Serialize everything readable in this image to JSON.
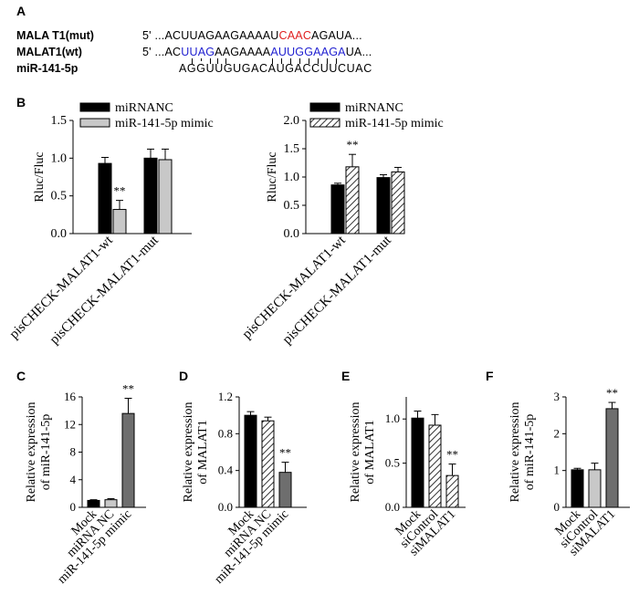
{
  "panels": {
    "A": "A",
    "B": "B",
    "C": "C",
    "D": "D",
    "E": "E",
    "F": "F"
  },
  "sequences": {
    "mut": {
      "label": "MALA T1(mut)",
      "prime": "5'",
      "pre": "...ACUUAGAAGAAAAU",
      "mut_site": "CAAC",
      "post": "AGAUA..."
    },
    "wt": {
      "label": "MALAT1(wt)",
      "prime": "5'",
      "segments": [
        {
          "t": "...AC",
          "c": "#000000"
        },
        {
          "t": "UUAG",
          "c": "#1f1fd0"
        },
        {
          "t": "AA",
          "c": "#000000"
        },
        {
          "t": "GAAAA",
          "c": "#000000"
        },
        {
          "t": "AUUGGAAGA",
          "c": "#1f1fd0"
        },
        {
          "t": "U",
          "c": "#000000"
        },
        {
          "t": "A...",
          "c": "#000000"
        }
      ]
    },
    "mirna": {
      "label": "miR-141-5p",
      "seq": "AGGUUGUGACAUGACCUUCUAC"
    }
  },
  "colors": {
    "black_bar": "#000000",
    "light_bar": "#c8c8c8",
    "dark_gray_bar": "#6e6e6e",
    "mut_red": "#e02020",
    "seed_blue": "#1f1fd0"
  },
  "chart_data": [
    {
      "id": "B-left",
      "type": "bar",
      "ylabel": "Rluc/Fluc",
      "ylim": [
        0,
        1.5
      ],
      "yticks": [
        "0.0",
        "0.5",
        "1.0",
        "1.5"
      ],
      "categories": [
        "pisCHECK-MALAT1-wt",
        "pisCHECK-MALAT1-mut"
      ],
      "series": [
        {
          "name": "miRNANC",
          "values": [
            0.93,
            1.0
          ],
          "errors": [
            0.08,
            0.12
          ]
        },
        {
          "name": "miR-141-5p mimic",
          "values": [
            0.32,
            0.98
          ],
          "errors": [
            0.12,
            0.14
          ]
        }
      ],
      "significance": [
        {
          "category": 0,
          "series": 1,
          "label": "**"
        }
      ],
      "legend": "top-right"
    },
    {
      "id": "B-right",
      "type": "bar",
      "ylabel": "Rluc/Fluc",
      "ylim": [
        0,
        2.0
      ],
      "yticks": [
        "0.0",
        "0.5",
        "1.0",
        "1.5",
        "2.0"
      ],
      "categories": [
        "pisCHECK-MALAT1-wt",
        "pisCHECK-MALAT1-mut"
      ],
      "series": [
        {
          "name": "miRNANC",
          "values": [
            0.86,
            0.99
          ],
          "errors": [
            0.03,
            0.05
          ]
        },
        {
          "name": "miR-141-5p mimic",
          "values": [
            1.18,
            1.09
          ],
          "errors": [
            0.22,
            0.08
          ]
        }
      ],
      "significance": [
        {
          "category": 0,
          "series": 1,
          "label": "**"
        }
      ],
      "legend": "top-right"
    },
    {
      "id": "C",
      "type": "bar",
      "ylabel_line1": "Relative expression",
      "ylabel_line2": "of miR-141-5p",
      "ylim": [
        0,
        16
      ],
      "yticks": [
        "0",
        "4",
        "8",
        "12",
        "16"
      ],
      "categories": [
        "Mock",
        "miRNA NC",
        "miR-141-5p mimic"
      ],
      "values": [
        1.0,
        1.1,
        13.6
      ],
      "errors": [
        0.1,
        0.15,
        2.2
      ],
      "significance": [
        {
          "category": 2,
          "label": "**"
        }
      ]
    },
    {
      "id": "D",
      "type": "bar",
      "ylabel_line1": "Relative expression",
      "ylabel_line2": "of MALAT1",
      "ylim": [
        0,
        1.2
      ],
      "yticks": [
        "0.0",
        "0.4",
        "0.8",
        "1.2"
      ],
      "categories": [
        "Mock",
        "miRNA NC",
        "miR-141-5p mimic"
      ],
      "values": [
        1.0,
        0.94,
        0.38
      ],
      "errors": [
        0.04,
        0.04,
        0.11
      ],
      "significance": [
        {
          "category": 2,
          "label": "**"
        }
      ]
    },
    {
      "id": "E",
      "type": "bar",
      "ylabel_line1": "Relative expression",
      "ylabel_line2": "of MALAT1",
      "ylim": [
        0,
        1.25
      ],
      "yticks": [
        "0.0",
        "0.5",
        "1.0"
      ],
      "categories": [
        "Mock",
        "siControl",
        "siMALAT1"
      ],
      "values": [
        1.01,
        0.93,
        0.36
      ],
      "errors": [
        0.08,
        0.12,
        0.13
      ],
      "significance": [
        {
          "category": 2,
          "label": "**"
        }
      ]
    },
    {
      "id": "F",
      "type": "bar",
      "ylabel_line1": "Relative expression",
      "ylabel_line2": "of miR-141-5p",
      "ylim": [
        0,
        3
      ],
      "yticks": [
        "0",
        "1",
        "2",
        "3"
      ],
      "categories": [
        "Mock",
        "siControl",
        "siMALAT1"
      ],
      "values": [
        1.02,
        1.02,
        2.68
      ],
      "errors": [
        0.04,
        0.18,
        0.17
      ],
      "significance": [
        {
          "category": 2,
          "label": "**"
        }
      ]
    }
  ]
}
